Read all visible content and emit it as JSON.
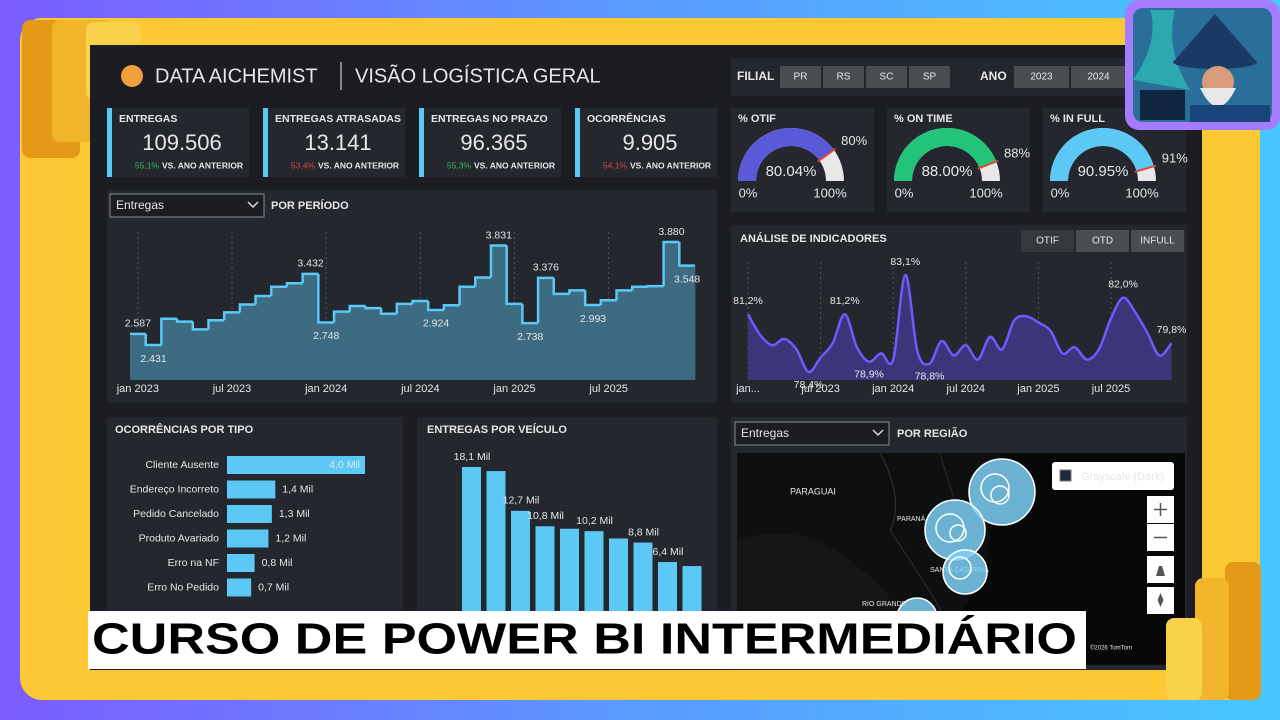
{
  "banner": {
    "title": "CURSO DE POWER BI INTERMEDIÁRIO"
  },
  "header": {
    "brand": "DATA AICHEMIST",
    "title": "VISÃO LOGÍSTICA GERAL"
  },
  "filters": {
    "filial_label": "FILIAL",
    "filial_options": [
      "PR",
      "RS",
      "SC",
      "SP"
    ],
    "ano_label": "ANO",
    "ano_options": [
      "2023",
      "2024"
    ]
  },
  "kpis": [
    {
      "title": "ENTREGAS",
      "value": "109.506",
      "delta": "55,1%",
      "delta_color": "#3dbb5a",
      "comparison": "VS. ANO ANTERIOR"
    },
    {
      "title": "ENTREGAS ATRASADAS",
      "value": "13.141",
      "delta": "53,4%",
      "delta_color": "#e0443c",
      "comparison": "VS. ANO ANTERIOR"
    },
    {
      "title": "ENTREGAS NO PRAZO",
      "value": "96.365",
      "delta": "55,3%",
      "delta_color": "#3dbb5a",
      "comparison": "VS. ANO ANTERIOR"
    },
    {
      "title": "OCORRÊNCIAS",
      "value": "9.905",
      "delta": "54,1%",
      "delta_color": "#e0443c",
      "comparison": "VS. ANO ANTERIOR"
    }
  ],
  "gauges": [
    {
      "type": "gauge",
      "title": "% OTIF",
      "color": "#5a5ad8",
      "value": 80.04,
      "value_label": "80.04%",
      "target": 80,
      "target_label": "80%",
      "min": 0,
      "min_label": "0%",
      "max": 100,
      "max_label": "100%"
    },
    {
      "type": "gauge",
      "title": "% ON TIME",
      "color": "#22c47a",
      "value": 88.0,
      "value_label": "88.00%",
      "target": 88,
      "target_label": "88%",
      "min": 0,
      "min_label": "0%",
      "max": 100,
      "max_label": "100%"
    },
    {
      "type": "gauge",
      "title": "% IN FULL",
      "color": "#5bc8f5",
      "value": 90.95,
      "value_label": "90.95%",
      "target": 91,
      "target_label": "91%",
      "min": 0,
      "min_label": "0%",
      "max": 100,
      "max_label": "100%"
    }
  ],
  "period_chart": {
    "type": "step-area",
    "dropdown": "Entregas",
    "title": "POR PERÍODO",
    "color": "#5bc8f5",
    "categories": [
      "jan 2023",
      null,
      null,
      null,
      null,
      null,
      "jul 2023",
      null,
      null,
      null,
      null,
      null,
      "jan 2024",
      null,
      null,
      null,
      null,
      null,
      "jul 2024",
      null,
      null,
      null,
      null,
      null,
      "jan 2025",
      null,
      null,
      null,
      null,
      null,
      "jul 2025",
      null,
      null,
      null,
      null,
      null
    ],
    "values": [
      2587,
      2431,
      2800,
      2760,
      2650,
      2780,
      2890,
      3000,
      3120,
      3250,
      3300,
      3432,
      2748,
      2900,
      2980,
      2950,
      2870,
      3010,
      3050,
      2924,
      2990,
      3250,
      3380,
      3831,
      3010,
      2738,
      3376,
      3150,
      3200,
      2993,
      3060,
      3200,
      3250,
      3260,
      3880,
      3548
    ],
    "value_labels": [
      "2.587",
      "2.431",
      null,
      null,
      null,
      null,
      null,
      null,
      null,
      null,
      null,
      "3.432",
      "2.748",
      null,
      null,
      null,
      null,
      null,
      null,
      "2.924",
      null,
      null,
      null,
      "3.831",
      null,
      "2.738",
      "3.376",
      null,
      null,
      "2.993",
      null,
      null,
      null,
      null,
      "3.880",
      "3.548"
    ]
  },
  "indicator_chart": {
    "type": "area",
    "title": "ANÁLISE DE INDICADORES",
    "buttons": [
      "OTIF",
      "OTD",
      "INFULL"
    ],
    "color": "#6a5cff",
    "categories": [
      "jan...",
      null,
      null,
      null,
      null,
      null,
      "jul 2023",
      null,
      null,
      null,
      null,
      null,
      "jan 2024",
      null,
      null,
      null,
      null,
      null,
      "jul 2024",
      null,
      null,
      null,
      null,
      null,
      "jan 2025",
      null,
      null,
      null,
      null,
      null,
      "jul 2025",
      null,
      null,
      null,
      null,
      null
    ],
    "values": [
      81.2,
      80.2,
      79.7,
      80.0,
      79.5,
      78.4,
      79.1,
      79.8,
      81.2,
      79.6,
      78.9,
      79.3,
      79.0,
      83.1,
      79.4,
      78.8,
      79.9,
      79.2,
      79.7,
      79.0,
      80.1,
      79.5,
      80.9,
      81.1,
      80.8,
      80.4,
      79.3,
      79.6,
      79.0,
      79.5,
      81.0,
      82.0,
      81.3,
      80.3,
      79.2,
      79.8
    ],
    "value_labels": [
      "81,2%",
      null,
      null,
      null,
      null,
      "78,4%",
      null,
      null,
      "81,2%",
      null,
      "78,9%",
      null,
      null,
      "83,1%",
      null,
      "78,8%",
      null,
      null,
      null,
      null,
      null,
      null,
      null,
      null,
      null,
      null,
      null,
      null,
      null,
      null,
      null,
      "82,0%",
      null,
      null,
      null,
      "79,8%"
    ]
  },
  "occurrence_chart": {
    "type": "hbar",
    "title": "OCORRÊNCIAS POR TIPO",
    "color": "#5bc8f5",
    "categories": [
      "Cliente Ausente",
      "Endereço Incorreto",
      "Pedido Cancelado",
      "Produto Avariado",
      "Erro na NF",
      "Erro No Pedido"
    ],
    "values": [
      4.0,
      1.4,
      1.3,
      1.2,
      0.8,
      0.7
    ],
    "value_labels": [
      "4,0 Mil",
      "1,4 Mil",
      "1,3 Mil",
      "1,2 Mil",
      "0,8 Mil",
      "0,7 Mil"
    ]
  },
  "vehicle_chart": {
    "type": "bar",
    "title": "ENTREGAS POR VEÍCULO",
    "color": "#5bc8f5",
    "values": [
      18.1,
      17.6,
      12.7,
      10.8,
      10.5,
      10.2,
      9.3,
      8.8,
      6.4,
      5.9
    ],
    "value_labels": [
      "18,1 Mil",
      null,
      "12,7 Mil",
      "10,8 Mil",
      null,
      "10,2 Mil",
      null,
      "8,8 Mil",
      "6,4 Mil",
      null
    ]
  },
  "map": {
    "dropdown": "Entregas",
    "title": "POR REGIÃO",
    "style_label": "Grayscale (Dark)",
    "places": [
      "PARAGUAI",
      "PARANÁ",
      "SANTA CATARINA",
      "RIO GRANDE"
    ],
    "attribution": "©2026 TomTom"
  }
}
